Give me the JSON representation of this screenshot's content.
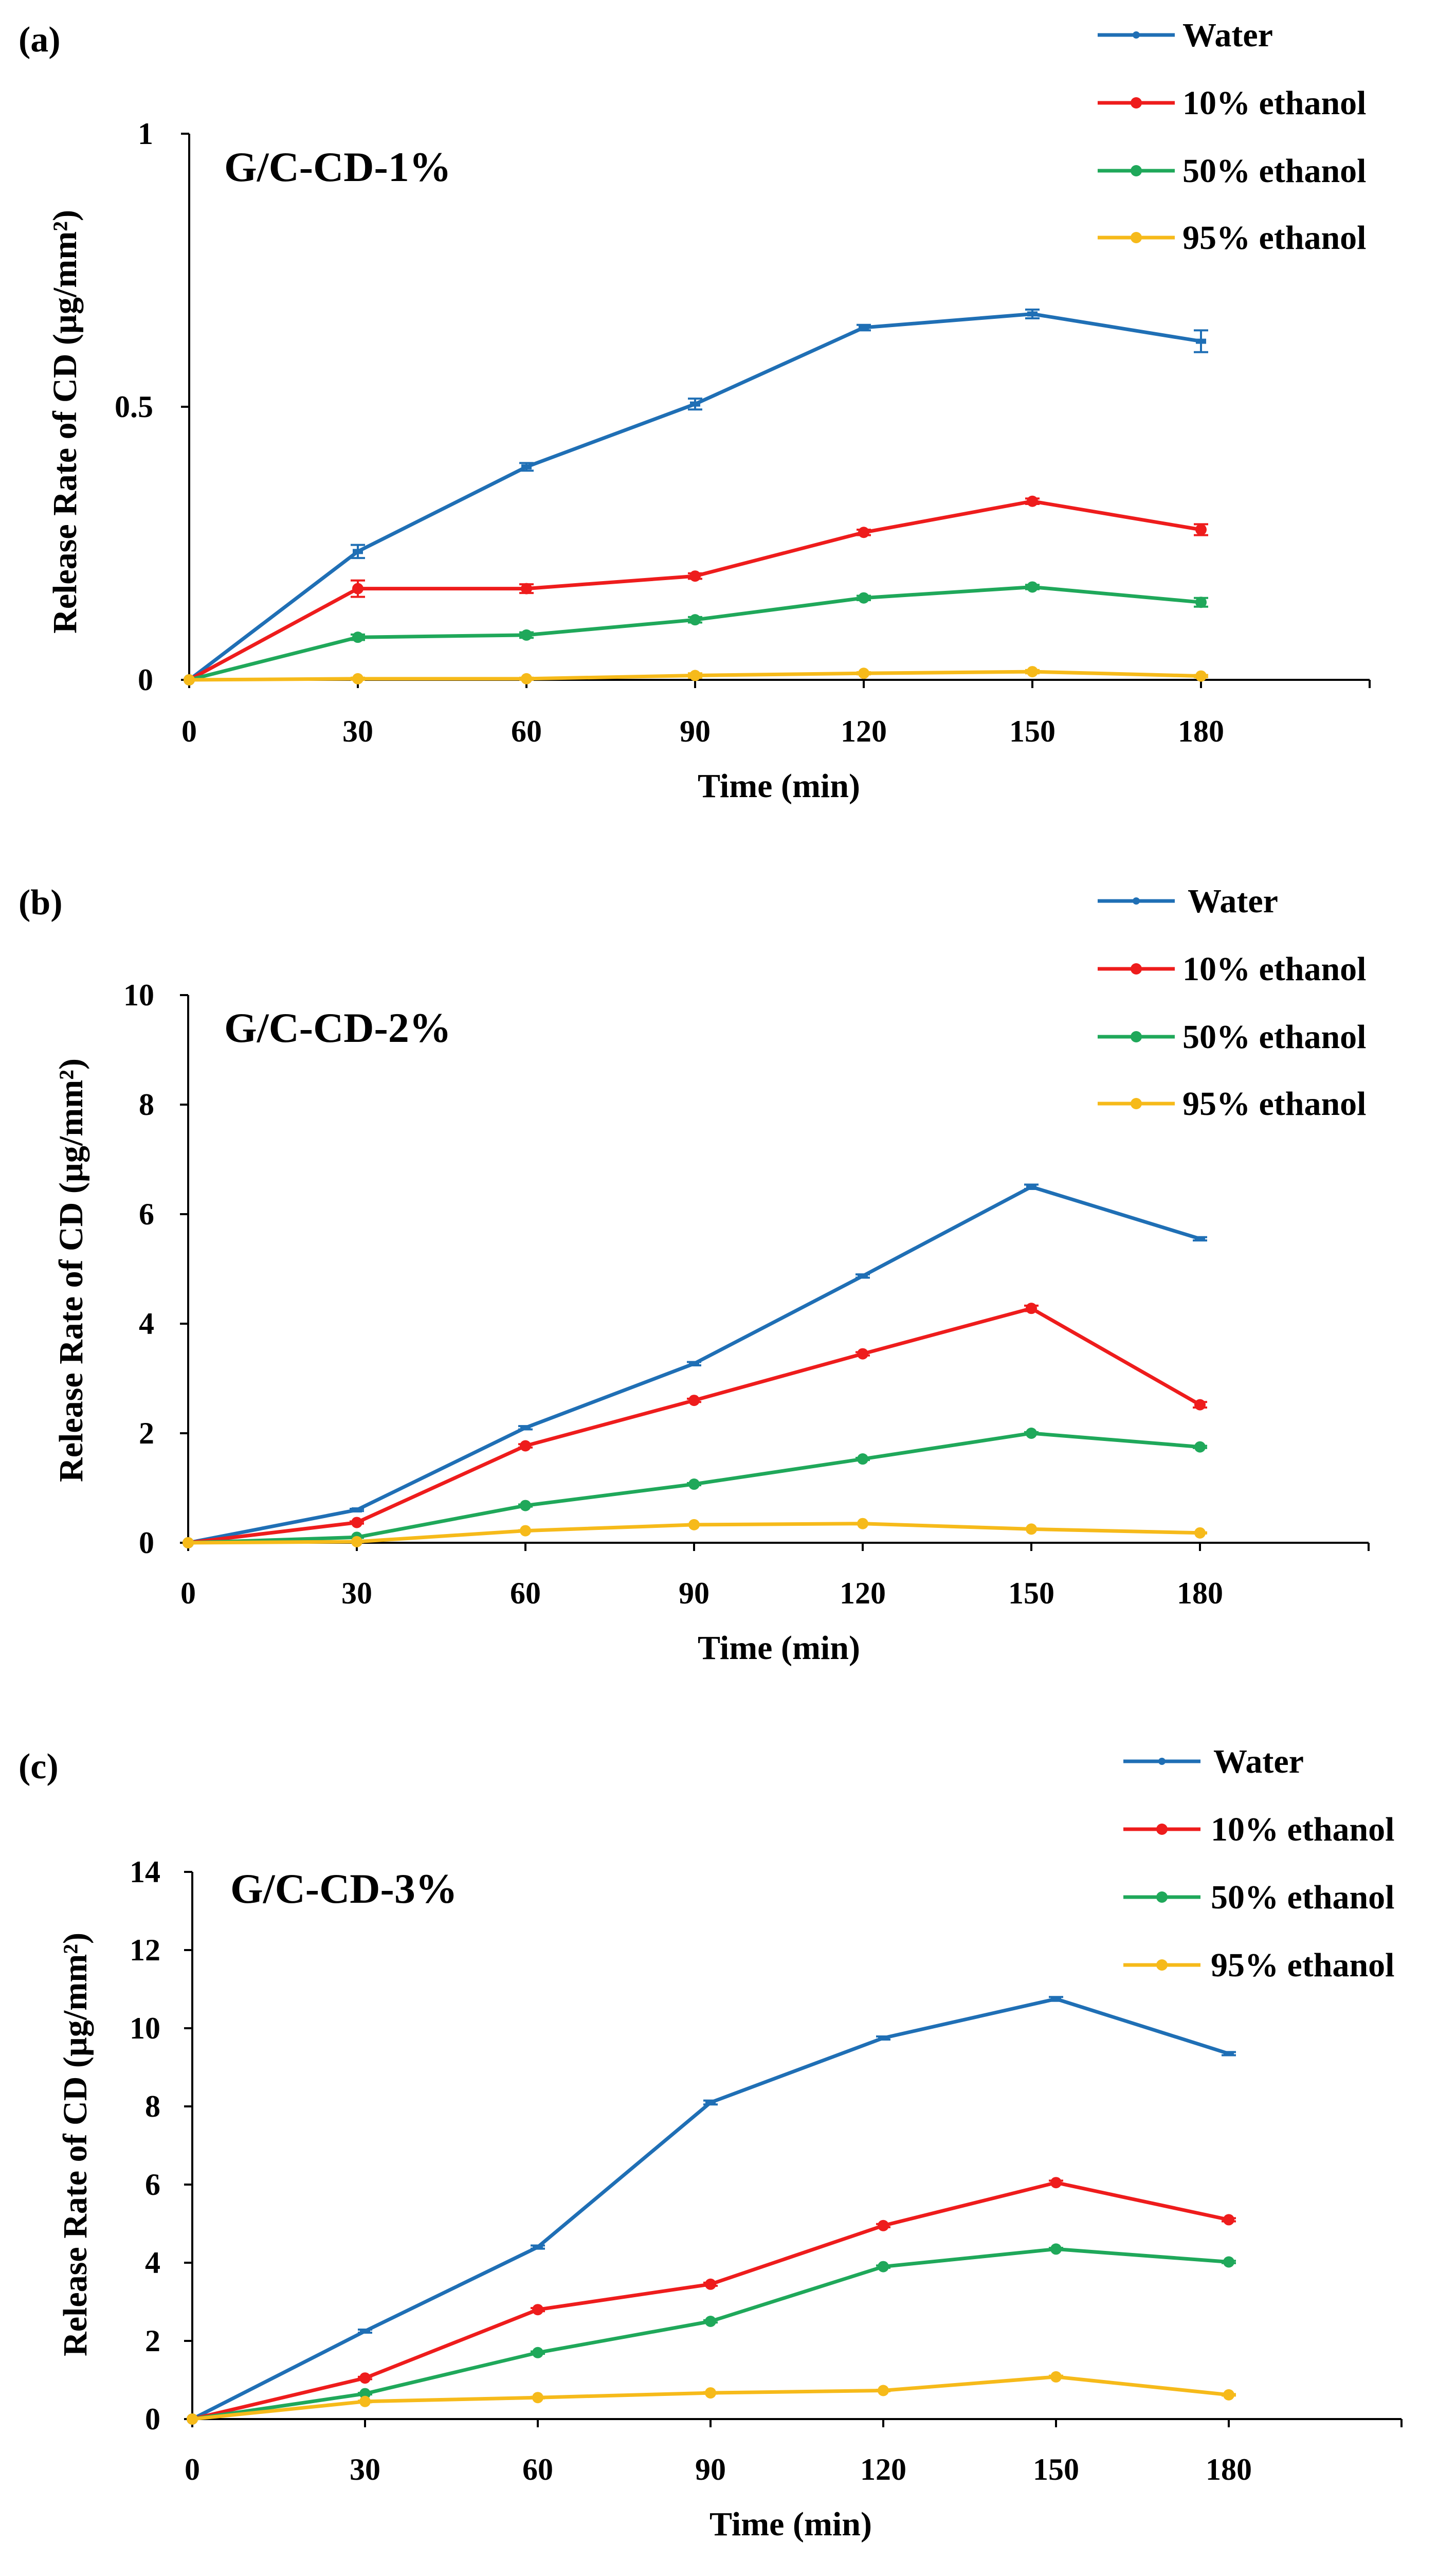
{
  "figure": {
    "colors": {
      "water": "#1F6FB5",
      "eth10": "#EE1C1C",
      "eth50": "#1FA85A",
      "eth95": "#F6BA1A"
    }
  },
  "chart_data": [
    {
      "panel_label": "(a)",
      "type": "line",
      "title": "G/C-CD-1%",
      "xlabel": "Time (min)",
      "ylabel": "Release Rate of CD (µg/mm²)",
      "x": [
        0,
        30,
        60,
        90,
        120,
        150,
        180
      ],
      "xticks": [
        "0",
        "30",
        "60",
        "90",
        "120",
        "150",
        "180"
      ],
      "xlim": [
        0,
        210
      ],
      "ylim": [
        0,
        1
      ],
      "yticks": [
        "0",
        "0.5",
        "1"
      ],
      "series": [
        {
          "name": "Water",
          "color": "#1F6FB5",
          "marker": "dash",
          "values": [
            0,
            0.235,
            0.39,
            0.505,
            0.645,
            0.67,
            0.62
          ],
          "errors": [
            0,
            0.012,
            0.007,
            0.01,
            0.005,
            0.008,
            0.02
          ]
        },
        {
          "name": "10% ethanol",
          "color": "#EE1C1C",
          "marker": "dot",
          "values": [
            0,
            0.167,
            0.167,
            0.19,
            0.27,
            0.327,
            0.275
          ],
          "errors": [
            0,
            0.015,
            0.008,
            0.005,
            0.005,
            0.005,
            0.01
          ]
        },
        {
          "name": "50% ethanol",
          "color": "#1FA85A",
          "marker": "dot",
          "values": [
            0,
            0.078,
            0.082,
            0.11,
            0.15,
            0.17,
            0.142
          ],
          "errors": [
            0,
            0.005,
            0.005,
            0.005,
            0.004,
            0.004,
            0.008
          ]
        },
        {
          "name": "95% ethanol",
          "color": "#F6BA1A",
          "marker": "dot",
          "values": [
            0,
            0.002,
            0.002,
            0.008,
            0.012,
            0.015,
            0.007
          ],
          "errors": [
            0,
            0.002,
            0.002,
            0.004,
            0.002,
            0.003,
            0.002
          ]
        }
      ]
    },
    {
      "panel_label": "(b)",
      "type": "line",
      "title": "G/C-CD-2%",
      "xlabel": "Time (min)",
      "ylabel": "Release Rate of CD (µg/mm²)",
      "x": [
        0,
        30,
        60,
        90,
        120,
        150,
        180
      ],
      "xticks": [
        "0",
        "30",
        "60",
        "90",
        "120",
        "150",
        "180"
      ],
      "xlim": [
        0,
        210
      ],
      "ylim": [
        0,
        10
      ],
      "yticks": [
        "0",
        "2",
        "4",
        "6",
        "8",
        "10"
      ],
      "series": [
        {
          "name": "Water",
          "color": "#1F6FB5",
          "marker": "dash",
          "values": [
            0,
            0.6,
            2.1,
            3.27,
            4.87,
            6.5,
            5.55
          ],
          "errors": [
            0,
            0.02,
            0.03,
            0.03,
            0.03,
            0.04,
            0.03
          ]
        },
        {
          "name": "10% ethanol",
          "color": "#EE1C1C",
          "marker": "dot",
          "values": [
            0,
            0.37,
            1.77,
            2.6,
            3.45,
            4.28,
            2.52
          ],
          "errors": [
            0,
            0.02,
            0.03,
            0.03,
            0.03,
            0.05,
            0.05
          ]
        },
        {
          "name": "50% ethanol",
          "color": "#1FA85A",
          "marker": "dot",
          "values": [
            0,
            0.1,
            0.68,
            1.07,
            1.53,
            2.0,
            1.75
          ],
          "errors": [
            0,
            0.01,
            0.02,
            0.02,
            0.02,
            0.02,
            0.02
          ]
        },
        {
          "name": "95% ethanol",
          "color": "#F6BA1A",
          "marker": "dot",
          "values": [
            0,
            0.02,
            0.22,
            0.33,
            0.35,
            0.25,
            0.18
          ],
          "errors": [
            0,
            0.01,
            0.01,
            0.01,
            0.01,
            0.01,
            0.01
          ]
        }
      ]
    },
    {
      "panel_label": "(c)",
      "type": "line",
      "title": "G/C-CD-3%",
      "xlabel": "Time (min)",
      "ylabel": "Release Rate of CD (µg/mm²)",
      "x": [
        0,
        30,
        60,
        90,
        120,
        150,
        180
      ],
      "xticks": [
        "0",
        "30",
        "60",
        "90",
        "120",
        "150",
        "180"
      ],
      "xlim": [
        0,
        210
      ],
      "ylim": [
        0,
        14
      ],
      "yticks": [
        "0",
        "2",
        "4",
        "6",
        "8",
        "10",
        "12",
        "14"
      ],
      "series": [
        {
          "name": "Water",
          "color": "#1F6FB5",
          "marker": "dash",
          "values": [
            0,
            2.25,
            4.4,
            8.1,
            9.75,
            10.75,
            9.35
          ],
          "errors": [
            0,
            0.04,
            0.04,
            0.05,
            0.04,
            0.05,
            0.04
          ]
        },
        {
          "name": "10% ethanol",
          "color": "#EE1C1C",
          "marker": "dot",
          "values": [
            0,
            1.05,
            2.8,
            3.45,
            4.95,
            6.05,
            5.1
          ],
          "errors": [
            0,
            0.03,
            0.04,
            0.04,
            0.04,
            0.05,
            0.04
          ]
        },
        {
          "name": "50% ethanol",
          "color": "#1FA85A",
          "marker": "dot",
          "values": [
            0,
            0.65,
            1.7,
            2.5,
            3.9,
            4.35,
            4.02
          ],
          "errors": [
            0,
            0.02,
            0.03,
            0.03,
            0.03,
            0.03,
            0.03
          ]
        },
        {
          "name": "95% ethanol",
          "color": "#F6BA1A",
          "marker": "dot",
          "values": [
            0,
            0.45,
            0.55,
            0.67,
            0.73,
            1.08,
            0.62
          ],
          "errors": [
            0,
            0.02,
            0.02,
            0.02,
            0.02,
            0.03,
            0.02
          ]
        }
      ]
    }
  ]
}
